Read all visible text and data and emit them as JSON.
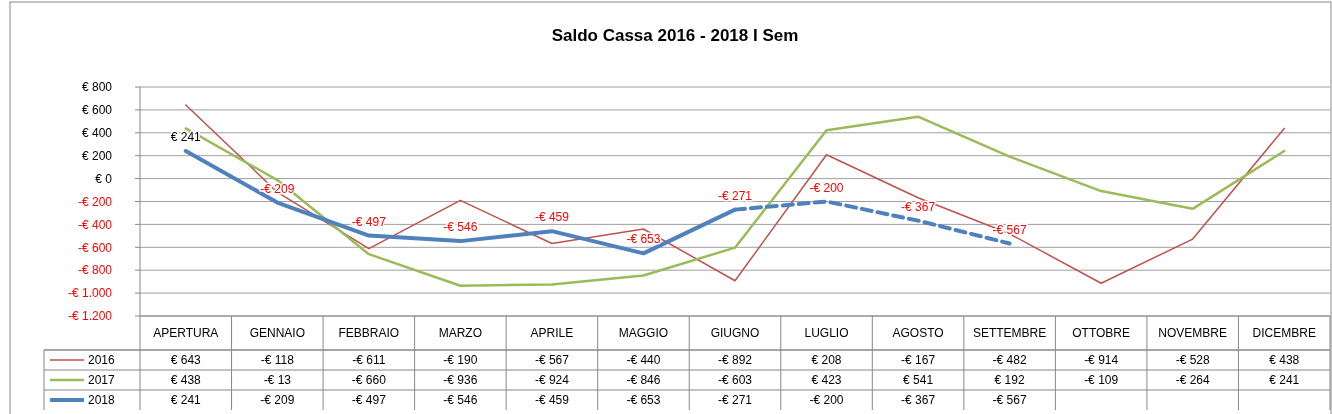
{
  "chart_data": {
    "type": "line",
    "title": "Saldo Cassa   2016 - 2018 I Sem",
    "categories": [
      "APERTURA",
      "GENNAIO",
      "FEBBRAIO",
      "MARZO",
      "APRILE",
      "MAGGIO",
      "GIUGNO",
      "LUGLIO",
      "AGOSTO",
      "SETTEMBRE",
      "OTTOBRE",
      "NOVEMBRE",
      "DICEMBRE"
    ],
    "series": [
      {
        "name": "2016",
        "color": "#c0504d",
        "values": [
          643,
          -118,
          -611,
          -190,
          -567,
          -440,
          -892,
          208,
          -167,
          -482,
          -914,
          -528,
          438
        ],
        "value_labels": [
          "€ 643",
          "-€ 118",
          "-€ 611",
          "-€ 190",
          "-€ 567",
          "-€ 440",
          "-€ 892",
          "€ 208",
          "-€ 167",
          "-€ 482",
          "-€ 914",
          "-€ 528",
          "€ 438"
        ]
      },
      {
        "name": "2017",
        "color": "#9bbb59",
        "values": [
          438,
          -13,
          -660,
          -936,
          -924,
          -846,
          -603,
          423,
          541,
          192,
          -109,
          -264,
          241
        ],
        "value_labels": [
          "€ 438",
          "-€ 13",
          "-€ 660",
          "-€ 936",
          "-€ 924",
          "-€ 846",
          "-€ 603",
          "€ 423",
          "€ 541",
          "€ 192",
          "-€ 109",
          "-€ 264",
          "€ 241"
        ]
      },
      {
        "name": "2018",
        "color": "#4f81bd",
        "line_style": "solid",
        "values": [
          241,
          -209,
          -497,
          -546,
          -459,
          -653,
          -271,
          null,
          null,
          null,
          null,
          null,
          null
        ],
        "value_labels": [
          "€ 241",
          "-€ 209",
          "-€ 497",
          "-€ 546",
          "-€ 459",
          "-€ 653",
          "-€ 271",
          null,
          null,
          null,
          null,
          null,
          null
        ]
      },
      {
        "color": "#4f81bd",
        "line_style": "dashed",
        "values": [
          null,
          null,
          null,
          null,
          null,
          null,
          -271,
          -200,
          -367,
          -567,
          null,
          null,
          null
        ],
        "value_labels": [
          null,
          null,
          null,
          null,
          null,
          null,
          null,
          "-€ 200",
          "-€ 367",
          "-€ 567",
          null,
          null,
          null
        ]
      }
    ],
    "ylim": [
      -1200,
      800
    ],
    "yticks": [
      {
        "value": -1200,
        "label": "-€ 1.200"
      },
      {
        "value": -1000,
        "label": "-€ 1.000"
      },
      {
        "value": -800,
        "label": "-€ 800"
      },
      {
        "value": -600,
        "label": "-€ 600"
      },
      {
        "value": -400,
        "label": "-€ 400"
      },
      {
        "value": -200,
        "label": "-€ 200"
      },
      {
        "value": 0,
        "label": "€ 0"
      },
      {
        "value": 200,
        "label": "€ 200"
      },
      {
        "value": 400,
        "label": "€ 400"
      },
      {
        "value": 600,
        "label": "€ 600"
      },
      {
        "value": 800,
        "label": "€ 800"
      }
    ],
    "grid": "y",
    "legend": "bottom left",
    "marker": "none"
  }
}
